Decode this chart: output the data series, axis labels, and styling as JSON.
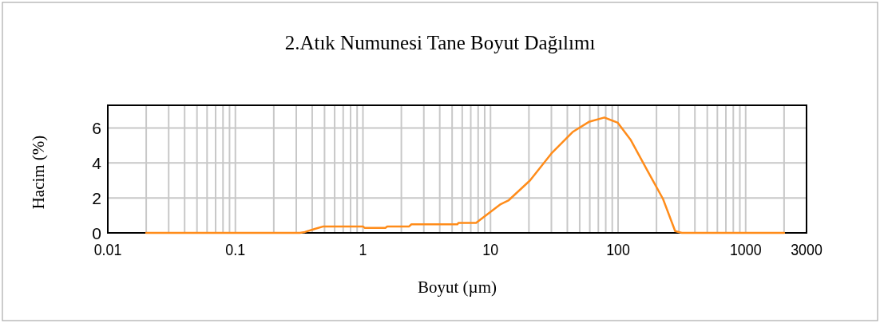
{
  "chart_data": {
    "type": "line",
    "title": "2.Atık Numunesi Tane Boyut Dağılımı",
    "xlabel": "Boyut  (µm)",
    "ylabel": "Hacim (%)",
    "log": "x",
    "grid": true,
    "marker": "none",
    "line_style": "solid",
    "xlim": [
      0.01,
      3000
    ],
    "ylim": [
      0,
      7.3
    ],
    "xticks": [
      0.01,
      {
        "value": 0.02,
        "label": null
      },
      {
        "value": 0.03,
        "label": null
      },
      {
        "value": 0.04,
        "label": null
      },
      {
        "value": 0.05,
        "label": null
      },
      {
        "value": 0.06,
        "label": null
      },
      {
        "value": 0.07,
        "label": null
      },
      {
        "value": 0.08,
        "label": null
      },
      {
        "value": 0.09,
        "label": null
      },
      0.1,
      {
        "value": 0.2,
        "label": null
      },
      {
        "value": 0.3,
        "label": null
      },
      {
        "value": 0.4,
        "label": null
      },
      {
        "value": 0.5,
        "label": null
      },
      {
        "value": 0.6,
        "label": null
      },
      {
        "value": 0.7,
        "label": null
      },
      {
        "value": 0.8,
        "label": null
      },
      {
        "value": 0.9,
        "label": null
      },
      1,
      {
        "value": 2,
        "label": null
      },
      {
        "value": 3,
        "label": null
      },
      {
        "value": 4,
        "label": null
      },
      {
        "value": 5,
        "label": null
      },
      {
        "value": 6,
        "label": null
      },
      {
        "value": 7,
        "label": null
      },
      {
        "value": 8,
        "label": null
      },
      {
        "value": 9,
        "label": null
      },
      10,
      {
        "value": 20,
        "label": null
      },
      {
        "value": 30,
        "label": null
      },
      {
        "value": 40,
        "label": null
      },
      {
        "value": 50,
        "label": null
      },
      {
        "value": 60,
        "label": null
      },
      {
        "value": 70,
        "label": null
      },
      {
        "value": 80,
        "label": null
      },
      {
        "value": 90,
        "label": null
      },
      100,
      {
        "value": 200,
        "label": null
      },
      {
        "value": 300,
        "label": null
      },
      {
        "value": 400,
        "label": null
      },
      {
        "value": 500,
        "label": null
      },
      {
        "value": 600,
        "label": null
      },
      {
        "value": 700,
        "label": null
      },
      {
        "value": 800,
        "label": null
      },
      {
        "value": 900,
        "label": null
      },
      1000,
      {
        "value": 2000,
        "label": null
      },
      3000
    ],
    "yticks": [
      0,
      2,
      4,
      6
    ],
    "series": [
      {
        "color": "#ff8c1a",
        "x": [
          0.02,
          0.32,
          0.35,
          0.42,
          0.49,
          1.0,
          1.03,
          1.5,
          1.55,
          2.3,
          2.4,
          5.5,
          5.6,
          7.7,
          9,
          12,
          13.9,
          20.4,
          30,
          44,
          59,
          78,
          99.5,
          126,
          168,
          225,
          280,
          316,
          2000
        ],
        "values": [
          0,
          0,
          0.05,
          0.23,
          0.37,
          0.37,
          0.29,
          0.29,
          0.37,
          0.37,
          0.49,
          0.49,
          0.57,
          0.57,
          0.95,
          1.64,
          1.87,
          3.0,
          4.54,
          5.77,
          6.35,
          6.6,
          6.3,
          5.3,
          3.62,
          1.94,
          0.1,
          0,
          0
        ]
      }
    ]
  }
}
